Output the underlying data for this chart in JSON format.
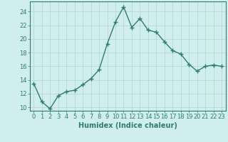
{
  "x": [
    0,
    1,
    2,
    3,
    4,
    5,
    6,
    7,
    8,
    9,
    10,
    11,
    12,
    13,
    14,
    15,
    16,
    17,
    18,
    19,
    20,
    21,
    22,
    23
  ],
  "y": [
    13.5,
    10.8,
    9.8,
    11.7,
    12.3,
    12.5,
    13.3,
    14.2,
    15.5,
    19.3,
    22.5,
    24.7,
    21.7,
    23.0,
    21.3,
    21.0,
    19.6,
    18.3,
    17.8,
    16.3,
    15.3,
    16.0,
    16.2,
    16.0
  ],
  "line_color": "#2e7d6e",
  "marker": "+",
  "marker_size": 4,
  "bg_color": "#d0eeee",
  "grid_color": "#b8d8d0",
  "xlabel": "Humidex (Indice chaleur)",
  "ylim": [
    9.5,
    25.5
  ],
  "xlim": [
    -0.5,
    23.5
  ],
  "yticks": [
    10,
    12,
    14,
    16,
    18,
    20,
    22,
    24
  ],
  "xticks": [
    0,
    1,
    2,
    3,
    4,
    5,
    6,
    7,
    8,
    9,
    10,
    11,
    12,
    13,
    14,
    15,
    16,
    17,
    18,
    19,
    20,
    21,
    22,
    23
  ],
  "xlabel_fontsize": 7,
  "tick_fontsize": 6,
  "line_width": 1.0
}
